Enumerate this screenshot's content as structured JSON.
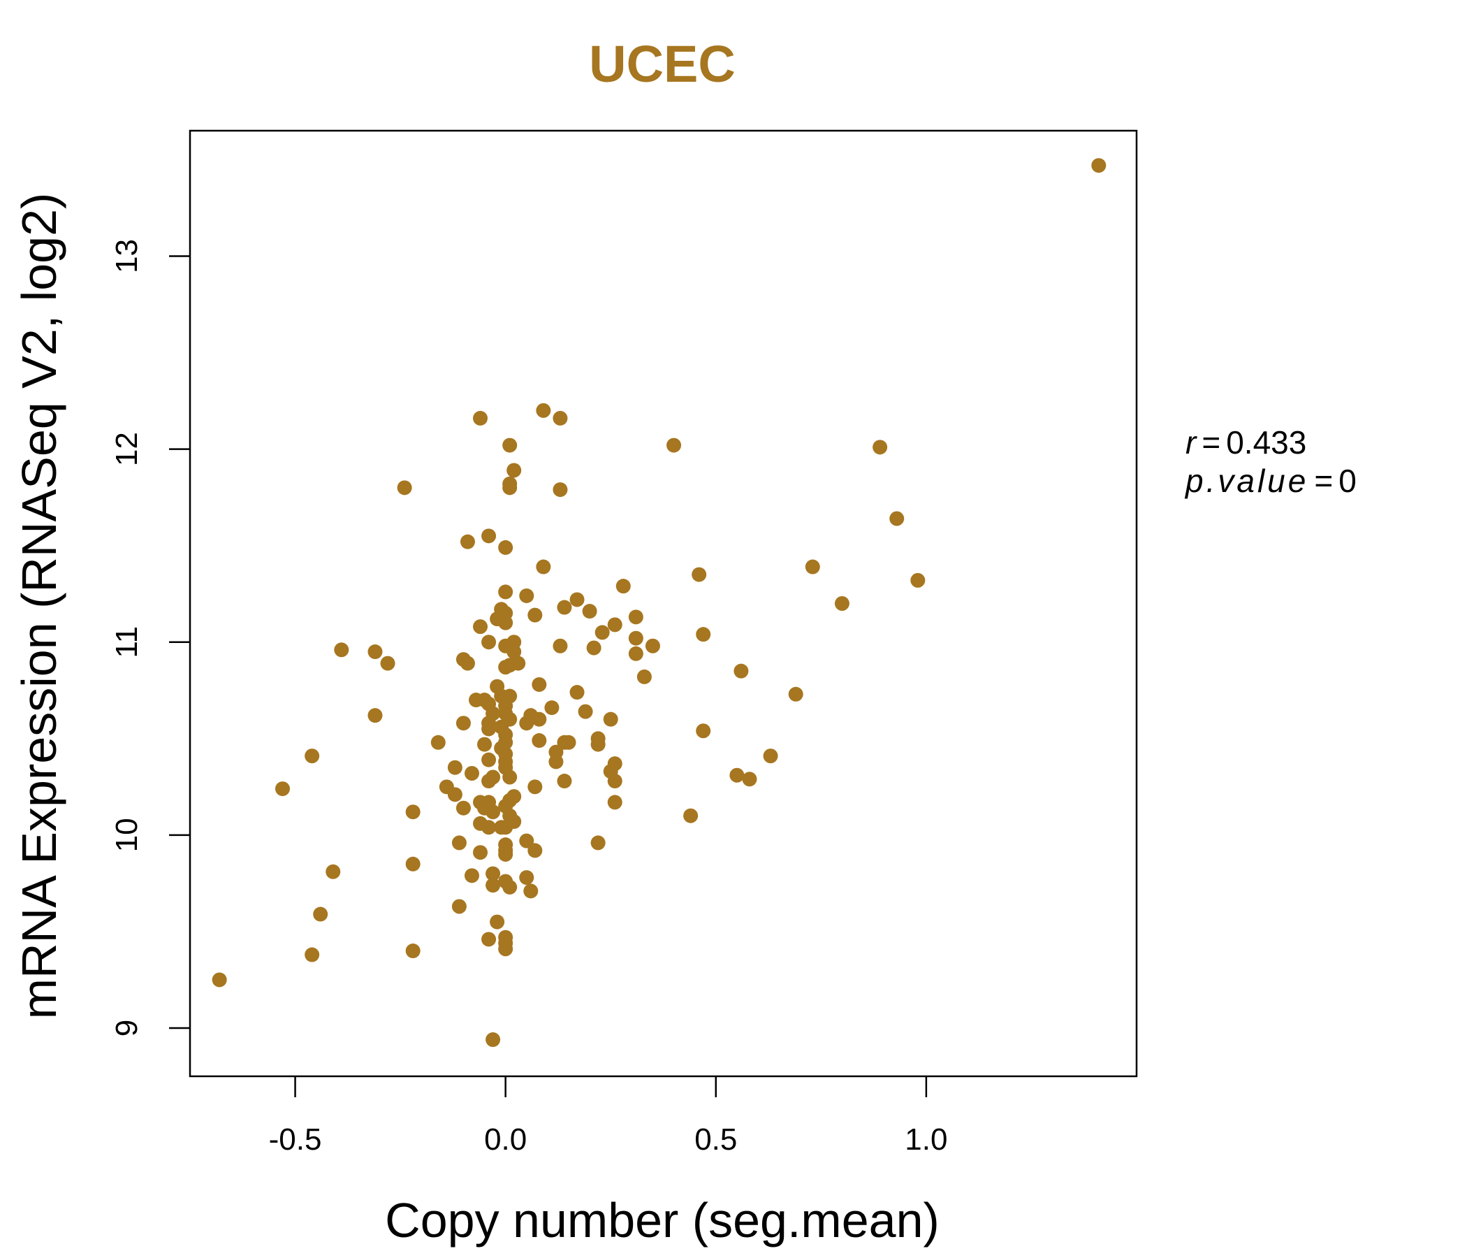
{
  "chart_data": {
    "type": "scatter",
    "title": "UCEC",
    "xlabel": "Copy number (seg.mean)",
    "ylabel": "mRNA Expression (RNASeq V2, log2)",
    "xlim": [
      -0.75,
      1.5
    ],
    "ylim": [
      8.75,
      13.65
    ],
    "x_ticks": [
      -0.5,
      0.0,
      0.5,
      1.0
    ],
    "x_tick_labels": [
      "-0.5",
      "0.0",
      "0.5",
      "1.0"
    ],
    "y_ticks": [
      9,
      10,
      11,
      12,
      13
    ],
    "y_tick_labels": [
      "9",
      "10",
      "11",
      "12",
      "13"
    ],
    "grid": false,
    "legend": "none",
    "point_color": "#A67620",
    "stats": {
      "r_label": "r",
      "r_value": "0.433",
      "p_label": "p.value",
      "p_value": "0"
    },
    "points": [
      [
        1.41,
        13.47
      ],
      [
        0.89,
        12.01
      ],
      [
        0.93,
        11.64
      ],
      [
        0.98,
        11.32
      ],
      [
        0.73,
        11.39
      ],
      [
        0.8,
        11.2
      ],
      [
        0.56,
        10.85
      ],
      [
        0.69,
        10.73
      ],
      [
        0.63,
        10.41
      ],
      [
        0.55,
        10.31
      ],
      [
        0.58,
        10.29
      ],
      [
        0.44,
        10.1
      ],
      [
        0.46,
        11.35
      ],
      [
        0.47,
        11.04
      ],
      [
        0.47,
        10.54
      ],
      [
        0.4,
        12.02
      ],
      [
        0.35,
        10.98
      ],
      [
        0.33,
        10.82
      ],
      [
        0.31,
        10.94
      ],
      [
        0.31,
        11.02
      ],
      [
        0.31,
        11.13
      ],
      [
        0.28,
        11.29
      ],
      [
        0.26,
        11.09
      ],
      [
        0.25,
        10.6
      ],
      [
        0.26,
        10.37
      ],
      [
        0.25,
        10.33
      ],
      [
        0.26,
        10.28
      ],
      [
        0.26,
        10.17
      ],
      [
        0.23,
        11.05
      ],
      [
        0.21,
        10.97
      ],
      [
        0.2,
        11.16
      ],
      [
        0.19,
        10.64
      ],
      [
        0.17,
        10.74
      ],
      [
        0.17,
        11.22
      ],
      [
        0.22,
        10.5
      ],
      [
        0.22,
        10.47
      ],
      [
        0.22,
        9.96
      ],
      [
        0.15,
        10.48
      ],
      [
        0.14,
        10.48
      ],
      [
        0.14,
        10.28
      ],
      [
        0.14,
        11.18
      ],
      [
        0.13,
        10.98
      ],
      [
        0.13,
        11.79
      ],
      [
        0.12,
        10.43
      ],
      [
        0.12,
        10.38
      ],
      [
        0.11,
        10.66
      ],
      [
        0.09,
        12.2
      ],
      [
        0.13,
        12.16
      ],
      [
        0.09,
        11.39
      ],
      [
        0.08,
        10.78
      ],
      [
        0.08,
        10.6
      ],
      [
        0.08,
        10.49
      ],
      [
        0.07,
        10.25
      ],
      [
        0.07,
        9.92
      ],
      [
        0.07,
        11.14
      ],
      [
        0.06,
        10.62
      ],
      [
        0.05,
        11.24
      ],
      [
        0.05,
        10.58
      ],
      [
        0.05,
        9.97
      ],
      [
        0.05,
        9.78
      ],
      [
        0.06,
        9.71
      ],
      [
        0.01,
        12.02
      ],
      [
        0.02,
        11.89
      ],
      [
        0.01,
        11.82
      ],
      [
        0.01,
        11.8
      ],
      [
        0.0,
        11.49
      ],
      [
        0.0,
        11.26
      ],
      [
        0.0,
        11.15
      ],
      [
        0.0,
        11.1
      ],
      [
        -0.01,
        11.17
      ],
      [
        -0.02,
        11.12
      ],
      [
        0.02,
        11.0
      ],
      [
        0.0,
        10.98
      ],
      [
        0.02,
        10.95
      ],
      [
        0.01,
        10.88
      ],
      [
        0.03,
        10.89
      ],
      [
        0.0,
        10.87
      ],
      [
        -0.02,
        10.77
      ],
      [
        -0.01,
        10.72
      ],
      [
        0.01,
        10.72
      ],
      [
        0.0,
        10.67
      ],
      [
        0.0,
        10.63
      ],
      [
        0.01,
        10.6
      ],
      [
        -0.01,
        10.56
      ],
      [
        0.0,
        10.52
      ],
      [
        0.0,
        10.48
      ],
      [
        -0.01,
        10.45
      ],
      [
        0.0,
        10.42
      ],
      [
        0.0,
        10.38
      ],
      [
        0.0,
        10.35
      ],
      [
        0.01,
        10.3
      ],
      [
        0.02,
        10.2
      ],
      [
        0.01,
        10.18
      ],
      [
        0.0,
        10.15
      ],
      [
        0.01,
        10.1
      ],
      [
        0.02,
        10.07
      ],
      [
        0.0,
        10.04
      ],
      [
        -0.01,
        10.04
      ],
      [
        0.0,
        9.95
      ],
      [
        0.0,
        9.92
      ],
      [
        0.0,
        9.9
      ],
      [
        0.0,
        9.76
      ],
      [
        0.01,
        9.73
      ],
      [
        -0.02,
        9.55
      ],
      [
        0.0,
        9.47
      ],
      [
        0.0,
        9.44
      ],
      [
        0.0,
        9.41
      ],
      [
        -0.03,
        8.94
      ],
      [
        -0.04,
        11.55
      ],
      [
        -0.06,
        12.16
      ],
      [
        -0.06,
        11.08
      ],
      [
        -0.04,
        11.0
      ],
      [
        -0.04,
        10.68
      ],
      [
        -0.05,
        10.7
      ],
      [
        -0.03,
        10.63
      ],
      [
        -0.04,
        10.58
      ],
      [
        -0.04,
        10.55
      ],
      [
        -0.05,
        10.47
      ],
      [
        -0.04,
        10.39
      ],
      [
        -0.03,
        10.3
      ],
      [
        -0.04,
        10.28
      ],
      [
        -0.06,
        10.17
      ],
      [
        -0.04,
        10.17
      ],
      [
        -0.05,
        10.14
      ],
      [
        -0.03,
        10.12
      ],
      [
        -0.06,
        10.06
      ],
      [
        -0.04,
        10.04
      ],
      [
        -0.03,
        9.8
      ],
      [
        -0.03,
        9.74
      ],
      [
        -0.06,
        9.91
      ],
      [
        -0.04,
        9.46
      ],
      [
        -0.09,
        11.52
      ],
      [
        -0.1,
        10.91
      ],
      [
        -0.09,
        10.89
      ],
      [
        -0.07,
        10.7
      ],
      [
        -0.1,
        10.58
      ],
      [
        -0.08,
        10.32
      ],
      [
        -0.1,
        10.14
      ],
      [
        -0.08,
        9.79
      ],
      [
        -0.11,
        9.96
      ],
      [
        -0.11,
        9.63
      ],
      [
        -0.12,
        10.35
      ],
      [
        -0.14,
        10.25
      ],
      [
        -0.12,
        10.21
      ],
      [
        -0.16,
        10.48
      ],
      [
        -0.22,
        10.12
      ],
      [
        -0.22,
        9.85
      ],
      [
        -0.22,
        9.4
      ],
      [
        -0.24,
        11.8
      ],
      [
        -0.28,
        10.89
      ],
      [
        -0.31,
        10.95
      ],
      [
        -0.31,
        10.62
      ],
      [
        -0.39,
        10.96
      ],
      [
        -0.41,
        9.81
      ],
      [
        -0.44,
        9.59
      ],
      [
        -0.46,
        10.41
      ],
      [
        -0.46,
        9.38
      ],
      [
        -0.53,
        10.24
      ],
      [
        -0.68,
        9.25
      ]
    ]
  }
}
